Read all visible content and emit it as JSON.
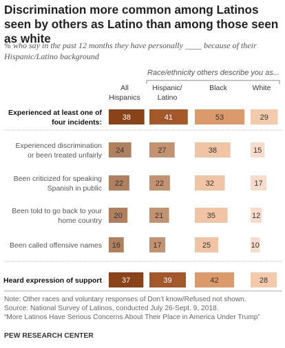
{
  "title": "Discrimination more common among Latinos seen by others as Latino than among those seen as white",
  "subtitle": "% who say in the past 12 months they have personally ____ because of their Hispanic/Latino background",
  "group_label": "Race/ethnicity others describe you as...",
  "notes": [
    "Note: Other races and voluntary responses of Don’t know/Refused not shown.",
    "Source: National Survey of Latinos, conducted July 26-Sept. 9, 2018.",
    "“More Latinos Have Serious Concerns About Their Place in America Under Trump”"
  ],
  "org": "PEW RESEARCH CENTER",
  "chart_data": {
    "type": "bar",
    "columns": [
      {
        "label_lines": [
          "All",
          "Hispanics"
        ]
      },
      {
        "label_lines": [
          "Hispanic/",
          "Latino"
        ]
      },
      {
        "label_lines": [
          "Black"
        ]
      },
      {
        "label_lines": [
          "White"
        ]
      }
    ],
    "rows": [
      {
        "label_lines": [
          "Experienced at least one of",
          "four incidents:"
        ],
        "bold": true,
        "values": [
          38,
          41,
          53,
          29
        ]
      },
      {
        "label_lines": [
          "Experienced discrimination",
          "or been treated unfairly"
        ],
        "bold": false,
        "values": [
          24,
          27,
          38,
          15
        ]
      },
      {
        "label_lines": [
          "Been criticized for speaking",
          "Spanish in public"
        ],
        "bold": false,
        "values": [
          22,
          22,
          32,
          17
        ]
      },
      {
        "label_lines": [
          "Been told to go back to your",
          "home country"
        ],
        "bold": false,
        "values": [
          20,
          21,
          35,
          12
        ]
      },
      {
        "label_lines": [
          "Been called offensive names"
        ],
        "bold": false,
        "values": [
          16,
          17,
          25,
          10
        ]
      },
      {
        "label_lines": [
          "Heard expression of support"
        ],
        "bold": true,
        "values": [
          37,
          39,
          42,
          28
        ]
      }
    ],
    "colors": {
      "bold": [
        "#8a4218",
        "#a4582a",
        "#dc9a6a",
        "#f2c9aa"
      ],
      "light": [
        "#b07f5d",
        "#c39270",
        "#f0c4a4",
        "#f7dccb"
      ]
    }
  }
}
